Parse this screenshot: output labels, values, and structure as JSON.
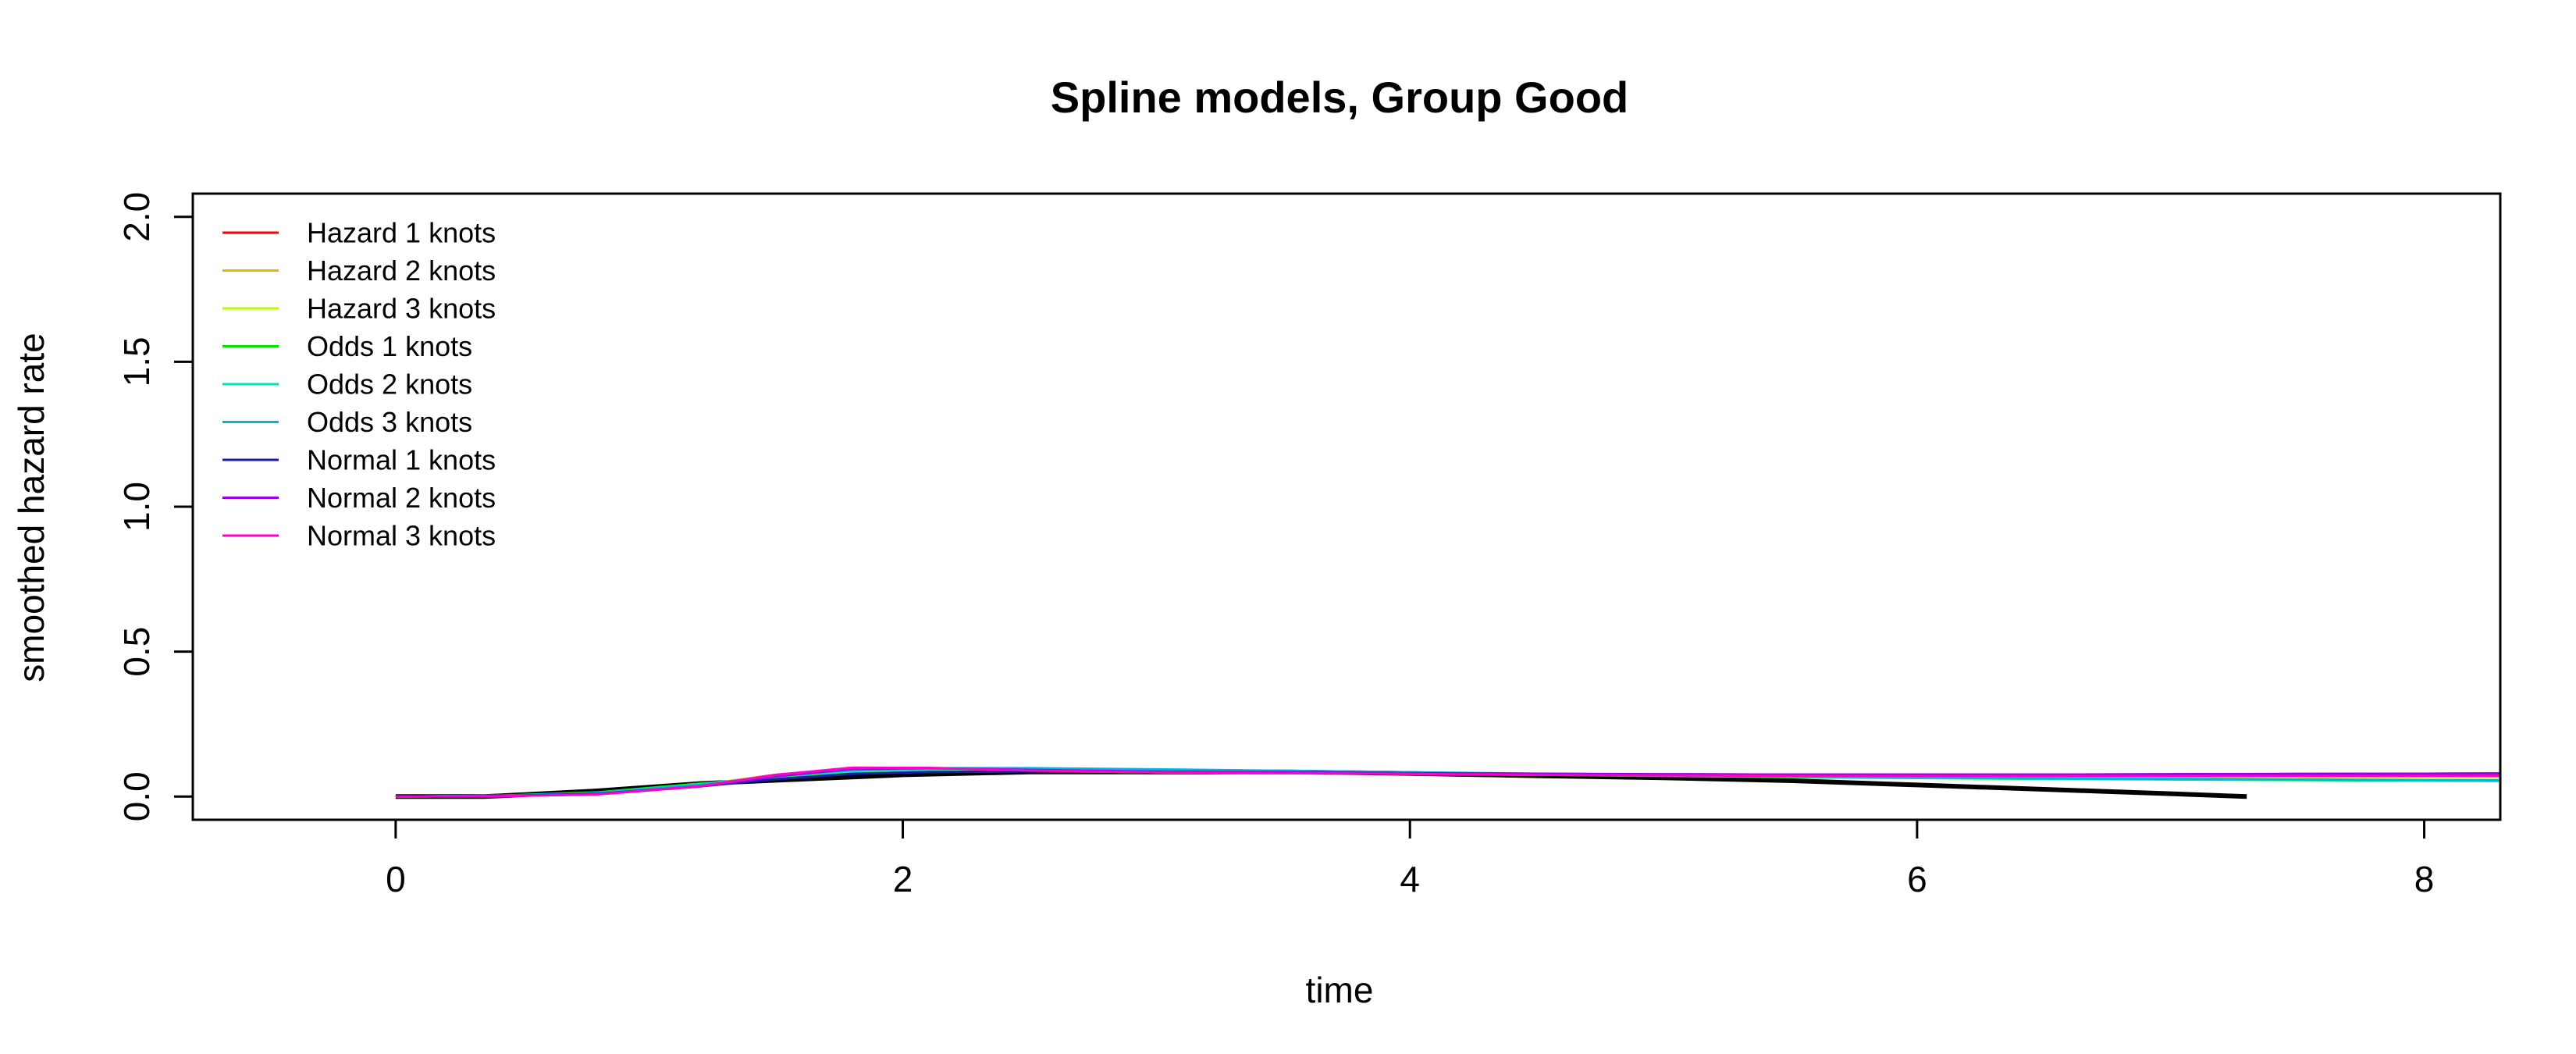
{
  "chart_data": {
    "type": "line",
    "title": "Spline models, Group Good",
    "xlabel": "time",
    "ylabel": "smoothed hazard rate",
    "xlim": [
      -0.8,
      8.3
    ],
    "ylim": [
      -0.08,
      2.08
    ],
    "x_ticks": [
      0,
      2,
      4,
      6,
      8
    ],
    "y_ticks": [
      0.0,
      0.5,
      1.0,
      1.5,
      2.0
    ],
    "x_tick_labels": [
      "0",
      "2",
      "4",
      "6",
      "8"
    ],
    "y_tick_labels": [
      "0.0",
      "0.5",
      "1.0",
      "1.5",
      "2.0"
    ],
    "grid": false,
    "legend_position": "top-left",
    "observed": {
      "color": "#000000",
      "x": [
        0,
        0.35,
        0.8,
        1.2,
        1.6,
        2.0,
        2.5,
        3.0,
        3.5,
        4.0,
        4.5,
        5.0,
        5.5,
        6.0,
        6.5,
        7.0,
        7.3
      ],
      "y": [
        0.0,
        0.0,
        0.02,
        0.045,
        0.06,
        0.075,
        0.085,
        0.085,
        0.085,
        0.08,
        0.072,
        0.065,
        0.055,
        0.04,
        0.025,
        0.01,
        0.0
      ]
    },
    "series": [
      {
        "name": "Hazard 1 knots",
        "color": "#FF0000",
        "x": [
          0,
          0.4,
          0.8,
          1.2,
          1.5,
          1.8,
          2.1,
          2.5,
          3.0,
          3.5,
          4.0,
          4.5,
          5.0,
          5.5,
          6.0,
          6.5,
          7.0,
          7.5,
          8.0,
          8.3
        ],
        "y": [
          0.0,
          0.002,
          0.01,
          0.04,
          0.075,
          0.095,
          0.095,
          0.09,
          0.085,
          0.083,
          0.08,
          0.077,
          0.075,
          0.074,
          0.073,
          0.072,
          0.072,
          0.071,
          0.071,
          0.071
        ]
      },
      {
        "name": "Hazard 2 knots",
        "color": "#E6B800",
        "x": [
          0,
          0.4,
          0.8,
          1.2,
          1.5,
          1.8,
          2.1,
          2.5,
          3.0,
          3.5,
          4.0,
          4.5,
          5.0,
          5.5,
          6.0,
          6.5,
          7.0,
          7.5,
          8.0,
          8.3
        ],
        "y": [
          0.0,
          0.002,
          0.01,
          0.04,
          0.073,
          0.093,
          0.094,
          0.089,
          0.084,
          0.082,
          0.079,
          0.076,
          0.074,
          0.073,
          0.072,
          0.071,
          0.071,
          0.07,
          0.07,
          0.07
        ]
      },
      {
        "name": "Hazard 3 knots",
        "color": "#B3FF00",
        "x": [
          0,
          0.4,
          0.8,
          1.2,
          1.5,
          1.8,
          2.1,
          2.5,
          3.0,
          3.5,
          4.0,
          4.5,
          5.0,
          5.5,
          6.0,
          6.5,
          7.0,
          7.5,
          8.0,
          8.3
        ],
        "y": [
          0.0,
          0.002,
          0.011,
          0.042,
          0.074,
          0.092,
          0.093,
          0.088,
          0.084,
          0.081,
          0.078,
          0.075,
          0.073,
          0.071,
          0.07,
          0.069,
          0.068,
          0.068,
          0.067,
          0.067
        ]
      },
      {
        "name": "Odds 1 knots",
        "color": "#00E600",
        "x": [
          0,
          0.4,
          0.8,
          1.2,
          1.5,
          1.8,
          2.1,
          2.5,
          3.0,
          3.5,
          4.0,
          4.5,
          5.0,
          5.5,
          6.0,
          6.5,
          7.0,
          7.5,
          8.0,
          8.3
        ],
        "y": [
          0.0,
          0.003,
          0.015,
          0.045,
          0.065,
          0.08,
          0.085,
          0.087,
          0.086,
          0.083,
          0.079,
          0.075,
          0.071,
          0.067,
          0.064,
          0.061,
          0.059,
          0.057,
          0.055,
          0.054
        ]
      },
      {
        "name": "Odds 2 knots",
        "color": "#00E6B3",
        "x": [
          0,
          0.4,
          0.8,
          1.2,
          1.5,
          1.8,
          2.1,
          2.5,
          3.0,
          3.5,
          4.0,
          4.5,
          5.0,
          5.5,
          6.0,
          6.5,
          7.0,
          7.5,
          8.0,
          8.3
        ],
        "y": [
          0.0,
          0.003,
          0.013,
          0.042,
          0.07,
          0.088,
          0.094,
          0.095,
          0.092,
          0.088,
          0.083,
          0.078,
          0.073,
          0.069,
          0.065,
          0.062,
          0.06,
          0.058,
          0.056,
          0.055
        ]
      },
      {
        "name": "Odds 3 knots",
        "color": "#00B3E6",
        "x": [
          0,
          0.4,
          0.8,
          1.2,
          1.5,
          1.8,
          2.1,
          2.5,
          3.0,
          3.5,
          4.0,
          4.5,
          5.0,
          5.5,
          6.0,
          6.5,
          7.0,
          7.5,
          8.0,
          8.3
        ],
        "y": [
          0.0,
          0.003,
          0.012,
          0.04,
          0.072,
          0.092,
          0.098,
          0.098,
          0.094,
          0.089,
          0.084,
          0.079,
          0.074,
          0.07,
          0.066,
          0.063,
          0.061,
          0.059,
          0.057,
          0.056
        ]
      },
      {
        "name": "Normal 1 knots",
        "color": "#1A1AB3",
        "x": [
          0,
          0.4,
          0.8,
          1.2,
          1.5,
          1.8,
          2.1,
          2.5,
          3.0,
          3.5,
          4.0,
          4.5,
          5.0,
          5.5,
          6.0,
          6.5,
          7.0,
          7.5,
          8.0,
          8.3
        ],
        "y": [
          0.0,
          0.002,
          0.01,
          0.035,
          0.06,
          0.078,
          0.085,
          0.087,
          0.086,
          0.084,
          0.081,
          0.079,
          0.077,
          0.076,
          0.076,
          0.076,
          0.077,
          0.078,
          0.079,
          0.08
        ]
      },
      {
        "name": "Normal 2 knots",
        "color": "#9900E6",
        "x": [
          0,
          0.4,
          0.8,
          1.2,
          1.5,
          1.8,
          2.1,
          2.5,
          3.0,
          3.5,
          4.0,
          4.5,
          5.0,
          5.5,
          6.0,
          6.5,
          7.0,
          7.5,
          8.0,
          8.3
        ],
        "y": [
          0.0,
          0.001,
          0.008,
          0.035,
          0.07,
          0.095,
          0.098,
          0.092,
          0.086,
          0.083,
          0.08,
          0.078,
          0.077,
          0.076,
          0.076,
          0.076,
          0.077,
          0.078,
          0.079,
          0.08
        ]
      },
      {
        "name": "Normal 3 knots",
        "color": "#FF00CC",
        "x": [
          0,
          0.4,
          0.8,
          1.2,
          1.5,
          1.8,
          2.1,
          2.5,
          3.0,
          3.5,
          4.0,
          4.5,
          5.0,
          5.5,
          6.0,
          6.5,
          7.0,
          7.5,
          8.0,
          8.3
        ],
        "y": [
          0.0,
          0.001,
          0.008,
          0.036,
          0.075,
          0.1,
          0.099,
          0.09,
          0.084,
          0.081,
          0.078,
          0.075,
          0.073,
          0.072,
          0.071,
          0.071,
          0.071,
          0.071,
          0.072,
          0.072
        ]
      }
    ]
  }
}
